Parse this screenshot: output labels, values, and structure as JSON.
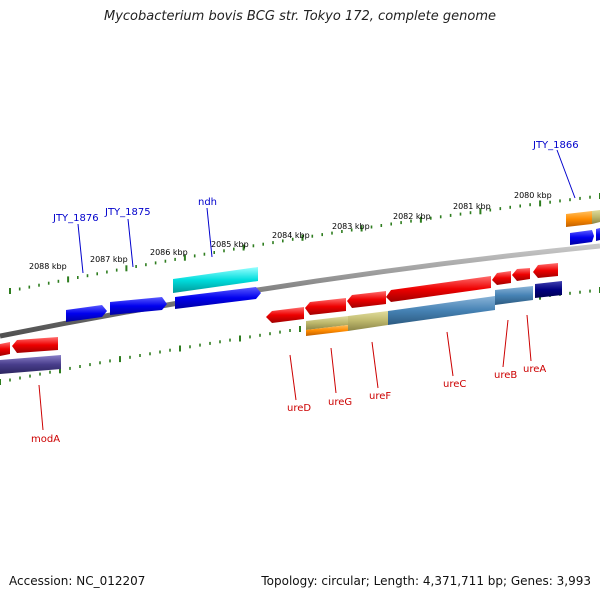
{
  "title": "Mycobacterium bovis BCG str. Tokyo 172, complete genome",
  "footer": {
    "accession": "Accession: NC_012207",
    "topology": "Topology: circular; Length: 4,371,711 bp; Genes: 3,993"
  },
  "scale": {
    "unit": "kbp",
    "ticks": [
      {
        "label": "2080 kbp"
      },
      {
        "label": "2081 kbp"
      },
      {
        "label": "2082 kbp"
      },
      {
        "label": "2083 kbp"
      },
      {
        "label": "2084 kbp"
      },
      {
        "label": "2085 kbp"
      },
      {
        "label": "2086 kbp"
      },
      {
        "label": "2087 kbp"
      },
      {
        "label": "2088 kbp"
      }
    ]
  },
  "colors": {
    "backbone": "#808080",
    "tick": "#2e7d1f",
    "forward_label": "#0000cc",
    "reverse_label": "#cc0000",
    "forward_gene": "#0000ee",
    "reverse_gene": "#ee0000",
    "cyan_gene": "#00dddd",
    "steel_feature": "#4682b4",
    "khaki_feature": "#bdb76b",
    "orange_feature": "#ff8c00",
    "navy_feature": "#000080",
    "slate_feature": "#483d8b"
  },
  "genes": {
    "forward": [
      {
        "label": "JTY_1876"
      },
      {
        "label": "JTY_1875"
      },
      {
        "label": "ndh"
      },
      {
        "label": "JTY_1866"
      }
    ],
    "reverse": [
      {
        "label": "ureD"
      },
      {
        "label": "ureG"
      },
      {
        "label": "ureF"
      },
      {
        "label": "ureC"
      },
      {
        "label": "ureB"
      },
      {
        "label": "ureA"
      },
      {
        "label": "modA"
      }
    ]
  }
}
